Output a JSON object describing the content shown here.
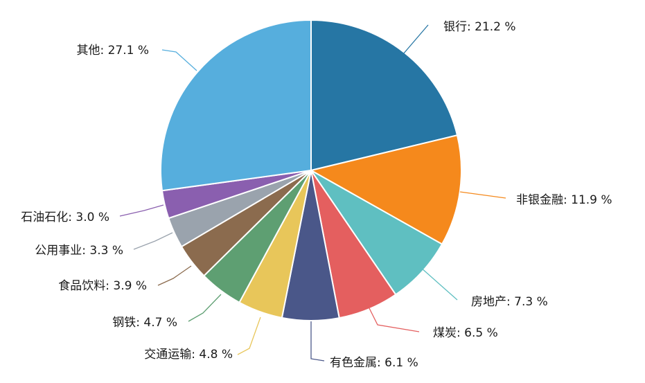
{
  "chart_data": {
    "type": "pie",
    "title": "",
    "legend": "none",
    "slices": [
      {
        "label": "银行",
        "value": 21.2,
        "text": "银行: 21.2 %",
        "color": "#2676a4"
      },
      {
        "label": "非银金融",
        "value": 11.9,
        "text": "非银金融: 11.9 %",
        "color": "#f5891c"
      },
      {
        "label": "房地产",
        "value": 7.3,
        "text": "房地产: 7.3 %",
        "color": "#5fbfc1"
      },
      {
        "label": "煤炭",
        "value": 6.5,
        "text": "煤炭: 6.5 %",
        "color": "#e45f5f"
      },
      {
        "label": "有色金属",
        "value": 6.1,
        "text": "有色金属: 6.1 %",
        "color": "#4a5789"
      },
      {
        "label": "交通运输",
        "value": 4.8,
        "text": "交通运输: 4.8 %",
        "color": "#e8c65a"
      },
      {
        "label": "钢铁",
        "value": 4.7,
        "text": "钢铁: 4.7 %",
        "color": "#5e9f72"
      },
      {
        "label": "食品饮料",
        "value": 3.9,
        "text": "食品饮料: 3.9 %",
        "color": "#8b6b4e"
      },
      {
        "label": "公用事业",
        "value": 3.3,
        "text": "公用事业: 3.3 %",
        "color": "#9aa3ad"
      },
      {
        "label": "石油石化",
        "value": 3.0,
        "text": "石油石化: 3.0 %",
        "color": "#8a5faf"
      },
      {
        "label": "其他",
        "value": 27.1,
        "text": "其他: 27.1 %",
        "color": "#56aedd"
      }
    ]
  }
}
